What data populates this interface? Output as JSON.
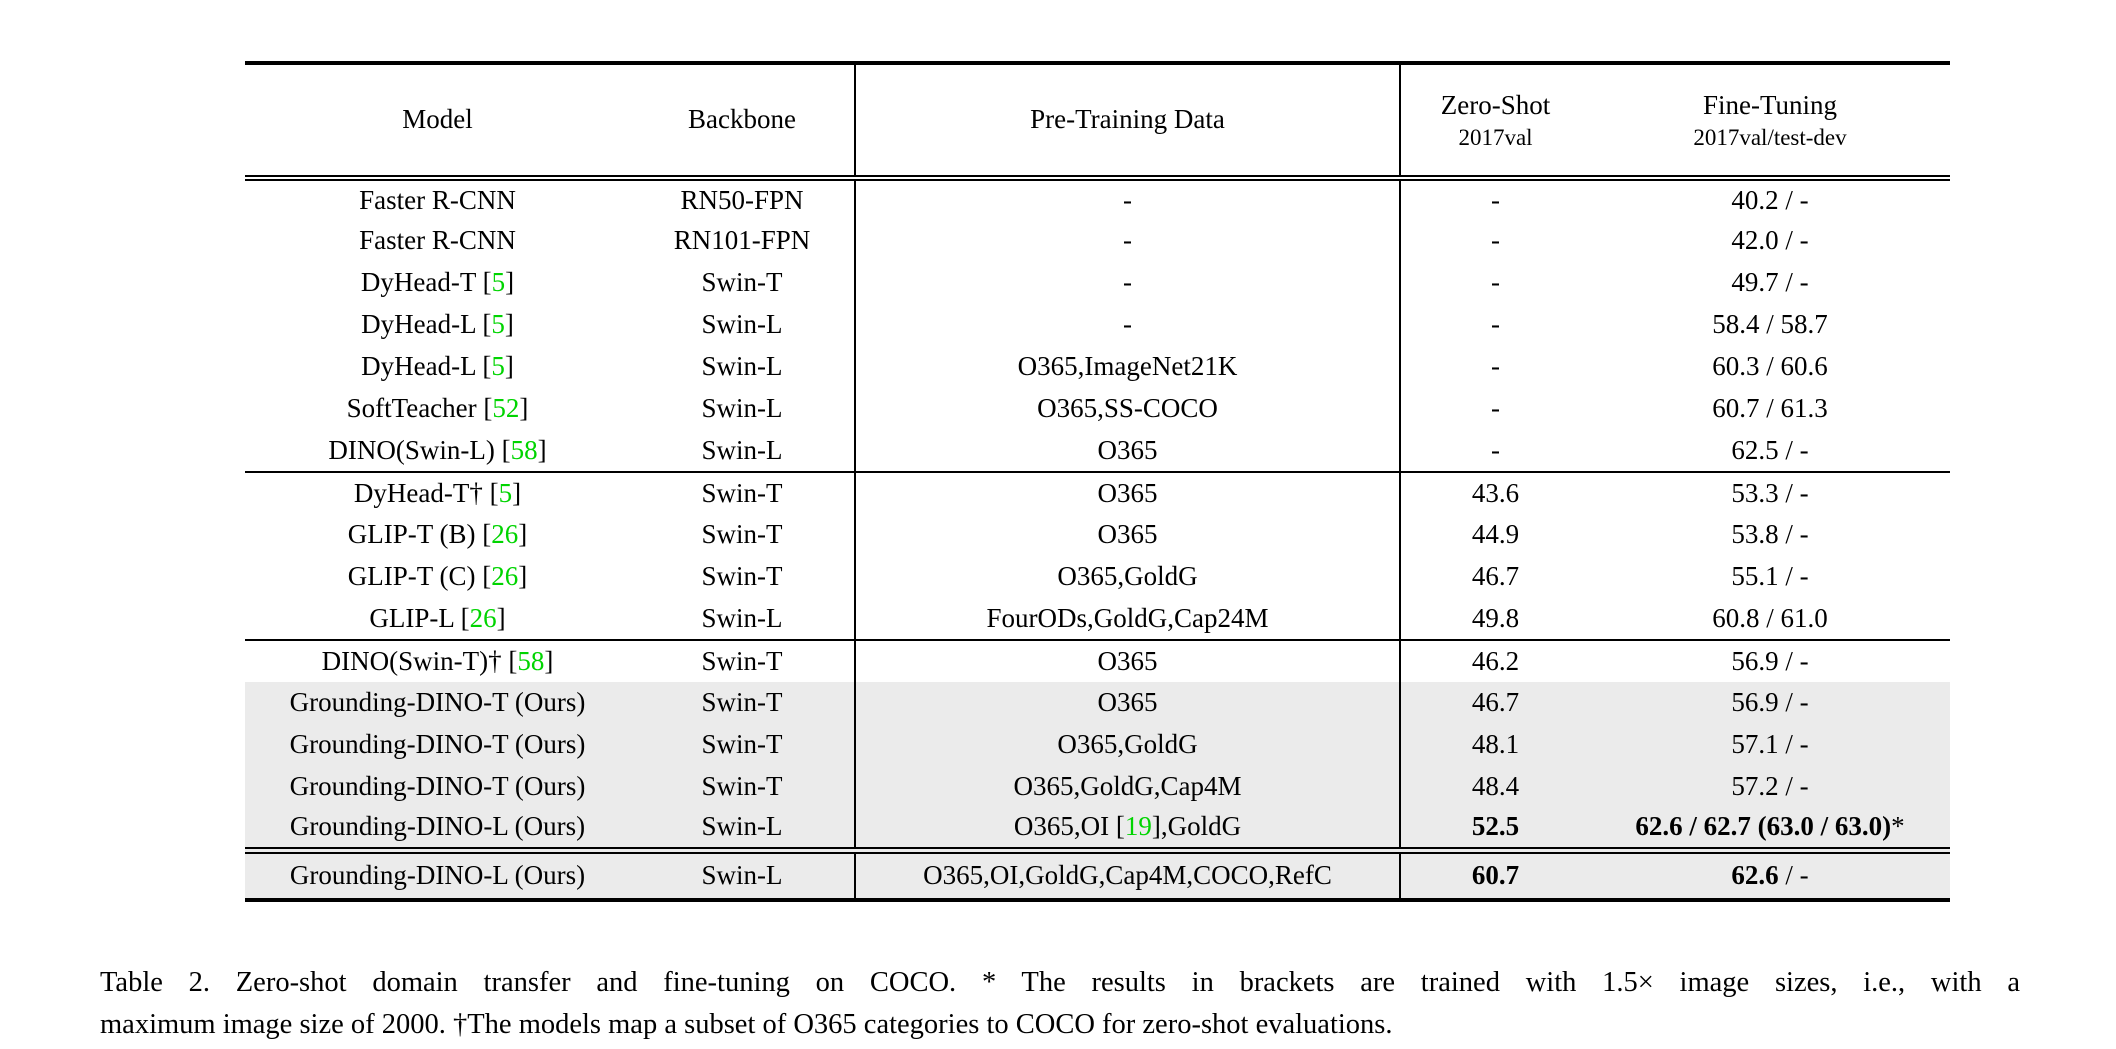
{
  "figure": {
    "headers": {
      "model": "Model",
      "backbone": "Backbone",
      "pretraining": "Pre-Training Data",
      "zeroshot_line1": "Zero-Shot",
      "zeroshot_line2": "2017val",
      "finetuning_line1": "Fine-Tuning",
      "finetuning_line2": "2017val/test-dev"
    },
    "groups": [
      {
        "rows": [
          {
            "hl": false,
            "model": "Faster R-CNN",
            "backbone": "RN50-FPN",
            "pretrain": "-",
            "zeroshot": "-",
            "finetune": "40.2 / -"
          },
          {
            "hl": false,
            "model": "Faster R-CNN",
            "backbone": "RN101-FPN",
            "pretrain": "-",
            "zeroshot": "-",
            "finetune": "42.0 / -"
          },
          {
            "hl": false,
            "model": [
              {
                "t": "DyHead-T ["
              },
              {
                "t": "5",
                "g": true
              },
              {
                "t": "]"
              }
            ],
            "backbone": "Swin-T",
            "pretrain": "-",
            "zeroshot": "-",
            "finetune": "49.7 / -"
          },
          {
            "hl": false,
            "model": [
              {
                "t": "DyHead-L ["
              },
              {
                "t": "5",
                "g": true
              },
              {
                "t": "]"
              }
            ],
            "backbone": "Swin-L",
            "pretrain": "-",
            "zeroshot": "-",
            "finetune": "58.4 / 58.7"
          },
          {
            "hl": false,
            "model": [
              {
                "t": "DyHead-L ["
              },
              {
                "t": "5",
                "g": true
              },
              {
                "t": "]"
              }
            ],
            "backbone": "Swin-L",
            "pretrain": "O365,ImageNet21K",
            "zeroshot": "-",
            "finetune": "60.3 / 60.6"
          },
          {
            "hl": false,
            "model": [
              {
                "t": "SoftTeacher ["
              },
              {
                "t": "52",
                "g": true
              },
              {
                "t": "]"
              }
            ],
            "backbone": "Swin-L",
            "pretrain": "O365,SS-COCO",
            "zeroshot": "-",
            "finetune": "60.7 / 61.3"
          },
          {
            "hl": false,
            "model": [
              {
                "t": "DINO(Swin-L) ["
              },
              {
                "t": "58",
                "g": true
              },
              {
                "t": "]"
              }
            ],
            "backbone": "Swin-L",
            "pretrain": "O365",
            "zeroshot": "-",
            "finetune": "62.5 / -"
          }
        ]
      },
      {
        "rows": [
          {
            "hl": false,
            "model": [
              {
                "t": "DyHead-T† ["
              },
              {
                "t": "5",
                "g": true
              },
              {
                "t": "]"
              }
            ],
            "backbone": "Swin-T",
            "pretrain": "O365",
            "zeroshot": "43.6",
            "finetune": "53.3 / -"
          },
          {
            "hl": false,
            "model": [
              {
                "t": "GLIP-T (B) ["
              },
              {
                "t": "26",
                "g": true
              },
              {
                "t": "]"
              }
            ],
            "backbone": "Swin-T",
            "pretrain": "O365",
            "zeroshot": "44.9",
            "finetune": "53.8 / -"
          },
          {
            "hl": false,
            "model": [
              {
                "t": "GLIP-T (C) ["
              },
              {
                "t": "26",
                "g": true
              },
              {
                "t": "]"
              }
            ],
            "backbone": "Swin-T",
            "pretrain": "O365,GoldG",
            "zeroshot": "46.7",
            "finetune": "55.1 / -"
          },
          {
            "hl": false,
            "model": [
              {
                "t": "GLIP-L ["
              },
              {
                "t": "26",
                "g": true
              },
              {
                "t": "]"
              }
            ],
            "backbone": "Swin-L",
            "pretrain": "FourODs,GoldG,Cap24M",
            "zeroshot": "49.8",
            "finetune": "60.8 / 61.0"
          }
        ]
      },
      {
        "rows": [
          {
            "hl": false,
            "model": [
              {
                "t": "DINO(Swin-T)† ["
              },
              {
                "t": "58",
                "g": true
              },
              {
                "t": "]"
              }
            ],
            "backbone": "Swin-T",
            "pretrain": "O365",
            "zeroshot": "46.2",
            "finetune": "56.9 / -"
          },
          {
            "hl": true,
            "model": "Grounding-DINO-T (Ours)",
            "backbone": "Swin-T",
            "pretrain": "O365",
            "zeroshot": "46.7",
            "finetune": "56.9 / -"
          },
          {
            "hl": true,
            "model": "Grounding-DINO-T (Ours)",
            "backbone": "Swin-T",
            "pretrain": "O365,GoldG",
            "zeroshot": "48.1",
            "finetune": "57.1 / -"
          },
          {
            "hl": true,
            "model": "Grounding-DINO-T (Ours)",
            "backbone": "Swin-T",
            "pretrain": "O365,GoldG,Cap4M",
            "zeroshot": "48.4",
            "finetune": "57.2 / -"
          },
          {
            "hl": true,
            "model": "Grounding-DINO-L (Ours)",
            "backbone": "Swin-L",
            "pretrain": [
              {
                "t": "O365,OI ["
              },
              {
                "t": "19",
                "g": true
              },
              {
                "t": "],GoldG"
              }
            ],
            "zeroshot": [
              {
                "t": "52.5",
                "b": true
              }
            ],
            "finetune": [
              {
                "t": "62.6 / 62.7 (63.0 / 63.0)",
                "b": true
              },
              {
                "t": "*"
              }
            ]
          }
        ]
      },
      {
        "rows": [
          {
            "hl": true,
            "model": "Grounding-DINO-L (Ours)",
            "backbone": "Swin-L",
            "pretrain": "O365,OI,GoldG,Cap4M,COCO,RefC",
            "zeroshot": [
              {
                "t": "60.7",
                "b": true
              }
            ],
            "finetune": [
              {
                "t": "62.6",
                "b": true
              },
              {
                "t": " / -"
              }
            ]
          }
        ]
      }
    ],
    "caption": {
      "line1": "Table 2.  Zero-shot domain transfer and fine-tuning on COCO. * The results in brackets are trained with 1.5× image sizes, i.e., with a",
      "line2": "maximum image size of 2000. †The models map a subset of O365 categories to COCO for zero-shot evaluations."
    }
  },
  "colors": {
    "citation_green": "#00d400",
    "row_highlight": "#ebebeb"
  }
}
